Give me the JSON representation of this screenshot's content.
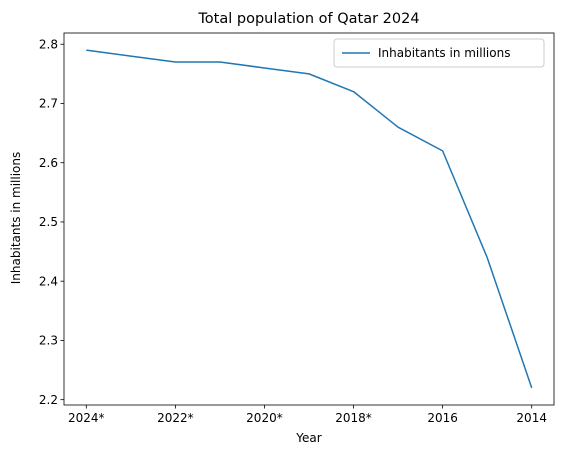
{
  "chart_data": {
    "type": "line",
    "title": "Total population of Qatar 2024",
    "xlabel": "Year",
    "ylabel": "Inhabitants in millions",
    "x": [
      "2024*",
      "2023*",
      "2022*",
      "2021*",
      "2020*",
      "2019*",
      "2018*",
      "2017",
      "2016",
      "2015",
      "2014"
    ],
    "x_tick_labels": [
      "2024*",
      "2022*",
      "2020*",
      "2018*",
      "2016",
      "2014"
    ],
    "series": [
      {
        "name": "Inhabitants in millions",
        "color": "#1f77b4",
        "values": [
          2.79,
          2.78,
          2.77,
          2.77,
          2.76,
          2.75,
          2.72,
          2.66,
          2.62,
          2.44,
          2.22
        ]
      }
    ],
    "yticks": [
      2.2,
      2.3,
      2.4,
      2.5,
      2.6,
      2.7,
      2.8
    ],
    "ylim": [
      2.191,
      2.819
    ],
    "grid": false,
    "legend_position": "top-right"
  }
}
